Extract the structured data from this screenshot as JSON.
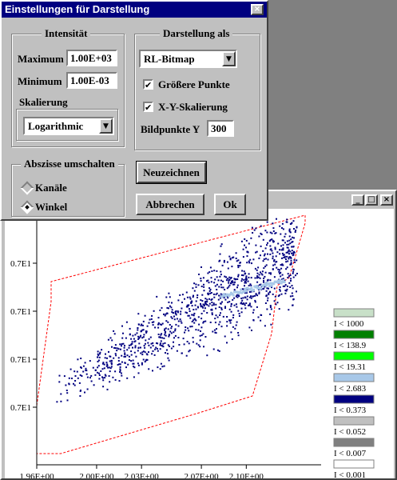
{
  "dialog": {
    "title": "Einstellungen für Darstellung",
    "close_label": "×",
    "intensity": {
      "title": "Intensität",
      "maximum_label": "Maximum",
      "maximum_value": "1.00E+03",
      "minimum_label": "Minimum",
      "minimum_value": "1.00E-03",
      "scaling_label": "Skalierung",
      "scaling_value": "Logarithmic"
    },
    "display": {
      "title": "Darstellung als",
      "mode_value": "RL-Bitmap",
      "bigger_points_label": "Größere Punkte",
      "bigger_points_checked": true,
      "xy_scaling_label": "X-Y-Skalierung",
      "xy_scaling_checked": true,
      "pixels_y_label": "Bildpunkte Y",
      "pixels_y_value": "300"
    },
    "abscissa": {
      "title": "Abszisse umschalten",
      "channels_label": "Kanäle",
      "angle_label": "Winkel",
      "selected": "angle"
    },
    "buttons": {
      "redraw": "Neuzeichnen",
      "cancel": "Abbrechen",
      "ok": "Ok"
    }
  },
  "plot_window": {
    "minimize_label": "_",
    "maximize_label": "□",
    "close_label": "×"
  },
  "chart_data": {
    "type": "scatter",
    "x_tick_labels": [
      "1.96E+00",
      "2.00E+00",
      "2.03E+00",
      "2.07E+00",
      "2.10E+00"
    ],
    "x_ticks": [
      1.96,
      2.0,
      2.03,
      2.07,
      2.1
    ],
    "xlim": [
      1.96,
      2.15
    ],
    "y_tick_labels": [
      "0.7E1",
      "0.7E1",
      "0.7E1",
      "0.7E1"
    ],
    "grid": false,
    "point_color": "#000080",
    "highlight_color": "#a8c8e8",
    "boundary_color": "#ff0000",
    "legend": {
      "placement": "right",
      "entries": [
        {
          "label": "I < 1000",
          "color": "#c8e0c8"
        },
        {
          "label": "I < 138.9",
          "color": "#008000"
        },
        {
          "label": "I < 19.31",
          "color": "#00ff00"
        },
        {
          "label": "I < 2.683",
          "color": "#a8c8e8"
        },
        {
          "label": "I < 0.373",
          "color": "#000080"
        },
        {
          "label": "I < 0.052",
          "color": "#c0c0c0"
        },
        {
          "label": "I < 0.007",
          "color": "#808080"
        },
        {
          "label": "I < 0.001",
          "color": "#ffffff"
        }
      ]
    }
  }
}
